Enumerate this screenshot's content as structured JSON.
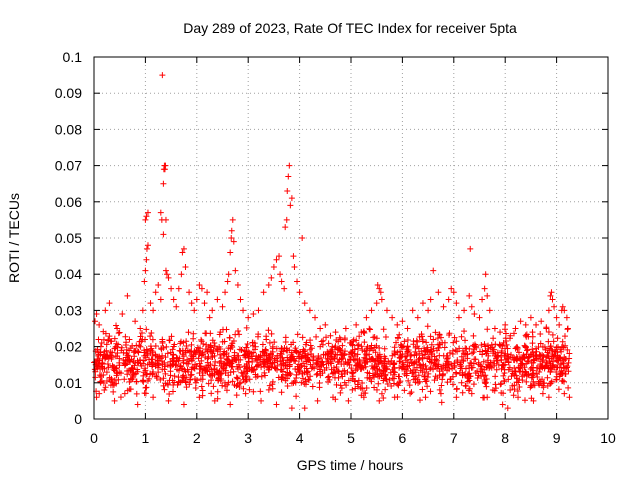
{
  "chart_data": {
    "type": "scatter",
    "title": "Day 289 of 2023, Rate Of TEC Index for receiver 5pta",
    "xlabel": "GPS time / hours",
    "ylabel": "ROTI / TECUs",
    "xlim": [
      0,
      10
    ],
    "ylim": [
      0,
      0.1
    ],
    "xticks": [
      0,
      1,
      2,
      3,
      4,
      5,
      6,
      7,
      8,
      9,
      10
    ],
    "xtick_labels": [
      "0",
      "1",
      "2",
      "3",
      "4",
      "5",
      "6",
      "7",
      "8",
      "9",
      "10"
    ],
    "yticks": [
      0,
      0.01,
      0.02,
      0.03,
      0.04,
      0.05,
      0.06,
      0.07,
      0.08,
      0.09,
      0.1
    ],
    "ytick_labels": [
      "0",
      "0.01",
      "0.02",
      "0.03",
      "0.04",
      "0.05",
      "0.06",
      "0.07",
      "0.08",
      "0.09",
      "0.1"
    ],
    "grid": true,
    "marker": "+",
    "series": [
      {
        "name": "ROTI",
        "color": "#ff0000",
        "points": [
          [
            0.02,
            0.027
          ],
          [
            0.05,
            0.029
          ],
          [
            0.1,
            0.026
          ],
          [
            0.15,
            0.021
          ],
          [
            0.22,
            0.03
          ],
          [
            0.3,
            0.032
          ],
          [
            0.45,
            0.025
          ],
          [
            0.55,
            0.029
          ],
          [
            0.65,
            0.034
          ],
          [
            0.8,
            0.027
          ],
          [
            0.9,
            0.025
          ],
          [
            0.95,
            0.03
          ],
          [
            0.98,
            0.038
          ],
          [
            1.0,
            0.041
          ],
          [
            1.02,
            0.044
          ],
          [
            1.03,
            0.047
          ],
          [
            1.05,
            0.048
          ],
          [
            1.0,
            0.055
          ],
          [
            1.02,
            0.056
          ],
          [
            1.05,
            0.057
          ],
          [
            1.1,
            0.032
          ],
          [
            1.15,
            0.03
          ],
          [
            1.2,
            0.035
          ],
          [
            1.25,
            0.037
          ],
          [
            1.3,
            0.033
          ],
          [
            1.3,
            0.057
          ],
          [
            1.32,
            0.055
          ],
          [
            1.33,
            0.095
          ],
          [
            1.35,
            0.051
          ],
          [
            1.35,
            0.065
          ],
          [
            1.36,
            0.069
          ],
          [
            1.37,
            0.07
          ],
          [
            1.38,
            0.069
          ],
          [
            1.39,
            0.07
          ],
          [
            1.4,
            0.055
          ],
          [
            1.4,
            0.041
          ],
          [
            1.42,
            0.04
          ],
          [
            1.45,
            0.039
          ],
          [
            1.5,
            0.036
          ],
          [
            1.55,
            0.033
          ],
          [
            1.6,
            0.031
          ],
          [
            1.65,
            0.036
          ],
          [
            1.7,
            0.04
          ],
          [
            1.72,
            0.046
          ],
          [
            1.75,
            0.047
          ],
          [
            1.78,
            0.042
          ],
          [
            1.85,
            0.035
          ],
          [
            1.9,
            0.032
          ],
          [
            1.95,
            0.03
          ],
          [
            2.0,
            0.033
          ],
          [
            2.05,
            0.037
          ],
          [
            2.1,
            0.036
          ],
          [
            2.15,
            0.032
          ],
          [
            2.2,
            0.035
          ],
          [
            2.25,
            0.028
          ],
          [
            2.3,
            0.03
          ],
          [
            2.4,
            0.033
          ],
          [
            2.5,
            0.031
          ],
          [
            2.55,
            0.035
          ],
          [
            2.6,
            0.038
          ],
          [
            2.62,
            0.04
          ],
          [
            2.65,
            0.046
          ],
          [
            2.67,
            0.05
          ],
          [
            2.68,
            0.052
          ],
          [
            2.7,
            0.055
          ],
          [
            2.72,
            0.049
          ],
          [
            2.75,
            0.041
          ],
          [
            2.8,
            0.037
          ],
          [
            2.85,
            0.033
          ],
          [
            2.9,
            0.03
          ],
          [
            3.0,
            0.028
          ],
          [
            3.1,
            0.029
          ],
          [
            3.2,
            0.03
          ],
          [
            3.3,
            0.035
          ],
          [
            3.4,
            0.037
          ],
          [
            3.45,
            0.039
          ],
          [
            3.5,
            0.042
          ],
          [
            3.55,
            0.044
          ],
          [
            3.6,
            0.045
          ],
          [
            3.62,
            0.04
          ],
          [
            3.65,
            0.038
          ],
          [
            3.7,
            0.036
          ],
          [
            3.72,
            0.053
          ],
          [
            3.75,
            0.055
          ],
          [
            3.76,
            0.063
          ],
          [
            3.78,
            0.067
          ],
          [
            3.8,
            0.07
          ],
          [
            3.82,
            0.059
          ],
          [
            3.85,
            0.061
          ],
          [
            3.88,
            0.045
          ],
          [
            3.9,
            0.042
          ],
          [
            3.95,
            0.038
          ],
          [
            4.0,
            0.035
          ],
          [
            4.05,
            0.05
          ],
          [
            4.1,
            0.032
          ],
          [
            4.2,
            0.03
          ],
          [
            4.3,
            0.028
          ],
          [
            4.4,
            0.025
          ],
          [
            4.5,
            0.026
          ],
          [
            4.6,
            0.023
          ],
          [
            4.7,
            0.024
          ],
          [
            4.8,
            0.022
          ],
          [
            4.9,
            0.025
          ],
          [
            5.0,
            0.021
          ],
          [
            5.1,
            0.026
          ],
          [
            5.2,
            0.024
          ],
          [
            5.3,
            0.028
          ],
          [
            5.4,
            0.03
          ],
          [
            5.5,
            0.032
          ],
          [
            5.52,
            0.037
          ],
          [
            5.55,
            0.036
          ],
          [
            5.58,
            0.035
          ],
          [
            5.6,
            0.033
          ],
          [
            5.7,
            0.03
          ],
          [
            5.8,
            0.028
          ],
          [
            5.9,
            0.026
          ],
          [
            6.0,
            0.027
          ],
          [
            6.1,
            0.025
          ],
          [
            6.2,
            0.03
          ],
          [
            6.3,
            0.028
          ],
          [
            6.4,
            0.032
          ],
          [
            6.5,
            0.03
          ],
          [
            6.55,
            0.033
          ],
          [
            6.6,
            0.041
          ],
          [
            6.7,
            0.035
          ],
          [
            6.8,
            0.031
          ],
          [
            6.9,
            0.033
          ],
          [
            6.95,
            0.036
          ],
          [
            7.0,
            0.035
          ],
          [
            7.05,
            0.032
          ],
          [
            7.1,
            0.028
          ],
          [
            7.2,
            0.03
          ],
          [
            7.3,
            0.034
          ],
          [
            7.32,
            0.047
          ],
          [
            7.35,
            0.031
          ],
          [
            7.4,
            0.029
          ],
          [
            7.5,
            0.028
          ],
          [
            7.55,
            0.033
          ],
          [
            7.6,
            0.036
          ],
          [
            7.62,
            0.04
          ],
          [
            7.65,
            0.034
          ],
          [
            7.7,
            0.03
          ],
          [
            7.8,
            0.025
          ],
          [
            7.9,
            0.024
          ],
          [
            8.0,
            0.026
          ],
          [
            8.1,
            0.023
          ],
          [
            8.2,
            0.025
          ],
          [
            8.3,
            0.027
          ],
          [
            8.4,
            0.026
          ],
          [
            8.5,
            0.028
          ],
          [
            8.6,
            0.026
          ],
          [
            8.7,
            0.027
          ],
          [
            8.8,
            0.025
          ],
          [
            8.85,
            0.03
          ],
          [
            8.88,
            0.034
          ],
          [
            8.9,
            0.035
          ],
          [
            8.92,
            0.033
          ],
          [
            8.95,
            0.031
          ],
          [
            9.0,
            0.028
          ],
          [
            9.05,
            0.026
          ],
          [
            9.1,
            0.03
          ],
          [
            9.12,
            0.031
          ],
          [
            9.15,
            0.03
          ],
          [
            9.2,
            0.028
          ],
          [
            9.22,
            0.025
          ],
          [
            0.05,
            0.006
          ],
          [
            0.2,
            0.008
          ],
          [
            0.4,
            0.005
          ],
          [
            0.6,
            0.007
          ],
          [
            0.85,
            0.004
          ],
          [
            1.15,
            0.006
          ],
          [
            1.45,
            0.005
          ],
          [
            1.75,
            0.004
          ],
          [
            2.05,
            0.006
          ],
          [
            2.35,
            0.005
          ],
          [
            2.65,
            0.004
          ],
          [
            2.95,
            0.007
          ],
          [
            3.25,
            0.005
          ],
          [
            3.55,
            0.004
          ],
          [
            3.85,
            0.003
          ],
          [
            4.1,
            0.003
          ],
          [
            4.35,
            0.005
          ],
          [
            4.65,
            0.006
          ],
          [
            4.95,
            0.005
          ],
          [
            5.25,
            0.006
          ],
          [
            5.55,
            0.005
          ],
          [
            5.85,
            0.006
          ],
          [
            6.15,
            0.007
          ],
          [
            6.45,
            0.006
          ],
          [
            6.75,
            0.007
          ],
          [
            7.05,
            0.006
          ],
          [
            7.35,
            0.007
          ],
          [
            7.65,
            0.006
          ],
          [
            7.95,
            0.004
          ],
          [
            8.05,
            0.003
          ],
          [
            8.25,
            0.006
          ],
          [
            8.55,
            0.005
          ],
          [
            8.85,
            0.006
          ],
          [
            9.15,
            0.007
          ],
          [
            9.25,
            0.006
          ]
        ],
        "envelope_note": "dense band",
        "dense_band": {
          "x_range": [
            0.0,
            9.25
          ],
          "y_range": [
            0.004,
            0.024
          ],
          "count": 1900
        }
      }
    ]
  }
}
